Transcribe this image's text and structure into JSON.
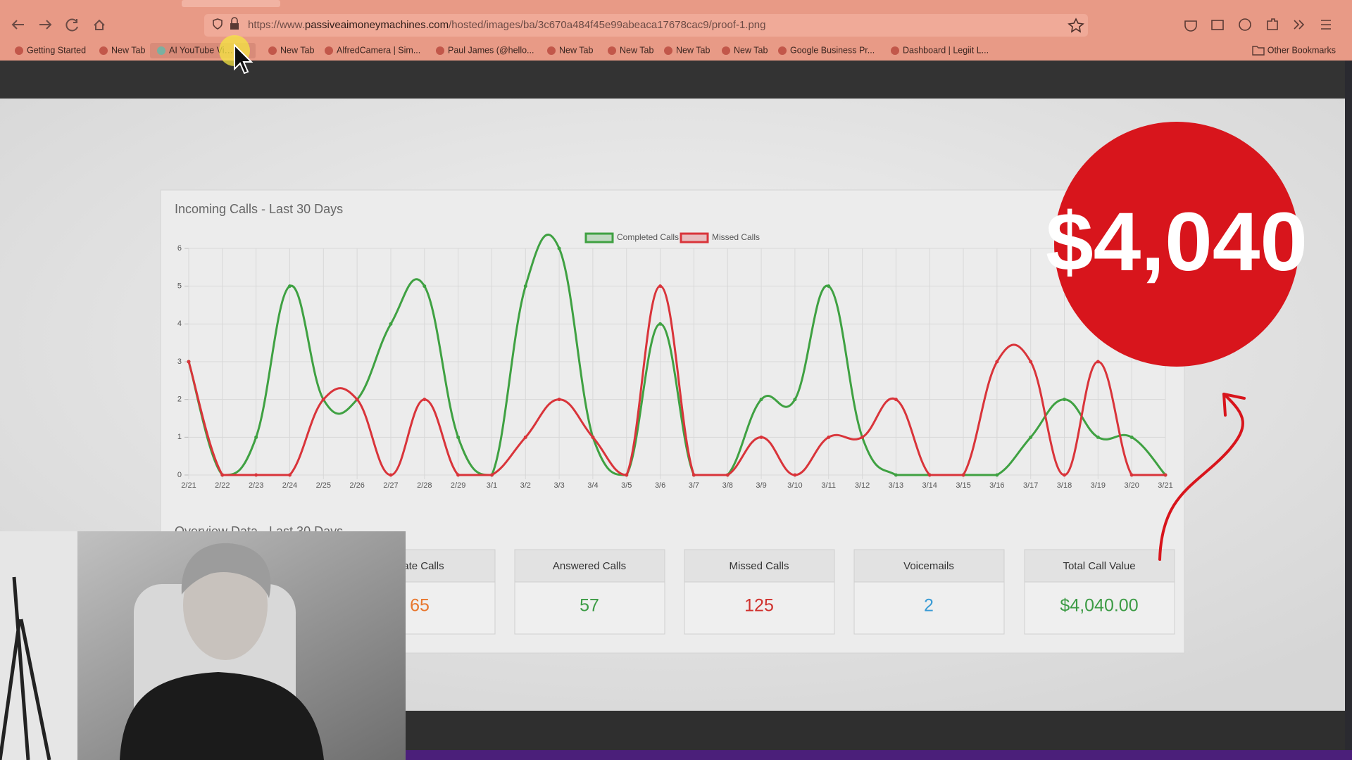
{
  "browser": {
    "url_scheme": "https://www.",
    "url_domain": "passiveaimoneymachines.com",
    "url_path": "/hosted/images/ba/3c670a484f45e99abeaca17678cac9/proof-1.png",
    "bookmarks": [
      "Getting Started",
      "New Tab",
      "AI YouTube Vi…",
      "New Tab",
      "AlfredCamera | Sim...",
      "Paul James (@hello...",
      "New Tab",
      "New Tab",
      "New Tab",
      "New Tab",
      "Google Business Pr...",
      "Dashboard | Legiit L..."
    ],
    "other_bookmarks": "Other Bookmarks"
  },
  "chart_data": {
    "type": "line",
    "title": "Incoming Calls - Last 30 Days",
    "categories": [
      "2/21",
      "2/22",
      "2/23",
      "2/24",
      "2/25",
      "2/26",
      "2/27",
      "2/28",
      "2/29",
      "3/1",
      "3/2",
      "3/3",
      "3/4",
      "3/5",
      "3/6",
      "3/7",
      "3/8",
      "3/9",
      "3/10",
      "3/11",
      "3/12",
      "3/13",
      "3/14",
      "3/15",
      "3/16",
      "3/17",
      "3/18",
      "3/19",
      "3/20",
      "3/21"
    ],
    "series": [
      {
        "name": "Completed Calls",
        "color": "#3fa142",
        "values": [
          3,
          0,
          1,
          5,
          2,
          2,
          4,
          5,
          1,
          0,
          5,
          6,
          1,
          0,
          4,
          0,
          0,
          2,
          2,
          5,
          1,
          0,
          0,
          0,
          0,
          1,
          2,
          1,
          1,
          0
        ]
      },
      {
        "name": "Missed Calls",
        "color": "#d9343a",
        "values": [
          3,
          0,
          0,
          0,
          2,
          2,
          0,
          2,
          0,
          0,
          1,
          2,
          1,
          0,
          5,
          0,
          0,
          1,
          0,
          1,
          1,
          2,
          0,
          0,
          3,
          3,
          0,
          3,
          0,
          0
        ]
      }
    ],
    "ylim": [
      0,
      6
    ],
    "yticks": [
      0,
      1,
      2,
      3,
      4,
      5,
      6
    ],
    "grid": true,
    "legend": "top"
  },
  "overview": {
    "title": "Overview Data - Last 30 Days",
    "cards": [
      {
        "label": "icate Calls",
        "value": "65",
        "color": "#e8772e"
      },
      {
        "label": "Answered Calls",
        "value": "57",
        "color": "#3c9b45"
      },
      {
        "label": "Missed Calls",
        "value": "125",
        "color": "#d0312d"
      },
      {
        "label": "Voicemails",
        "value": "2",
        "color": "#3a9bd5"
      },
      {
        "label": "Total Call Value",
        "value": "$4,040.00",
        "color": "#3c9b45"
      }
    ]
  },
  "badge": {
    "text": "$4,040"
  }
}
